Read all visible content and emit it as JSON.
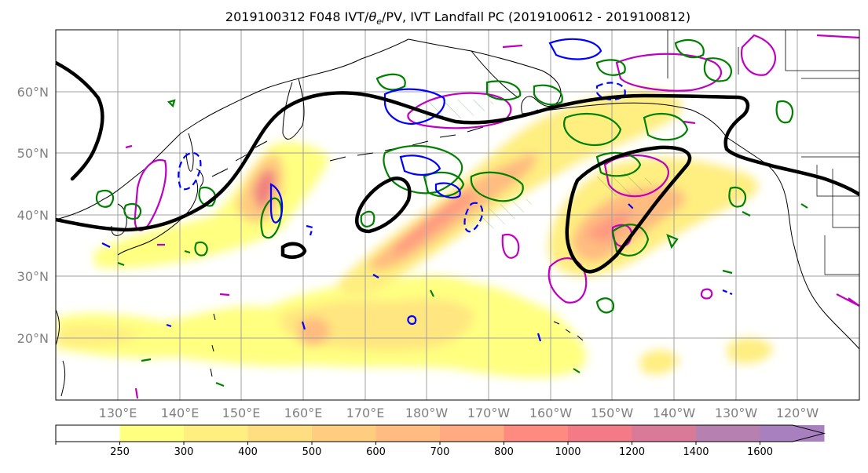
{
  "chart_data": {
    "type": "contour-map",
    "title_parts": {
      "prefix": "2019100312 F048 IVT/",
      "theta": "θ",
      "theta_sub": "e",
      "suffix": "/PV, IVT Landfall PC (2019100612 - 2019100812)"
    },
    "lat_ticks": [
      "20°N",
      "30°N",
      "40°N",
      "50°N",
      "60°N"
    ],
    "lon_ticks": [
      "130°E",
      "140°E",
      "150°E",
      "160°E",
      "170°E",
      "180°W",
      "170°W",
      "160°W",
      "150°W",
      "140°W",
      "130°W",
      "120°W"
    ],
    "colorbar": {
      "levels": [
        250,
        300,
        400,
        500,
        600,
        700,
        800,
        1000,
        1200,
        1400,
        1600
      ],
      "labels": [
        "250",
        "300",
        "400",
        "500",
        "600",
        "700",
        "800",
        "1000",
        "1200",
        "1400",
        "1600"
      ],
      "colors": [
        "#ffffff",
        "#ffff80",
        "#ffee80",
        "#ffdd80",
        "#ffcc80",
        "#ffbb80",
        "#ffaa80",
        "#ff8a80",
        "#f47a88",
        "#d97a98",
        "#b680b0",
        "#a880c0"
      ],
      "extend": "max"
    },
    "grid": true,
    "contour_colors": {
      "ivt_landfall_pc": "#000000",
      "theta_e_positive": "#008000",
      "theta_e_negative": "#0000ff",
      "pv": "#c000c0"
    }
  }
}
